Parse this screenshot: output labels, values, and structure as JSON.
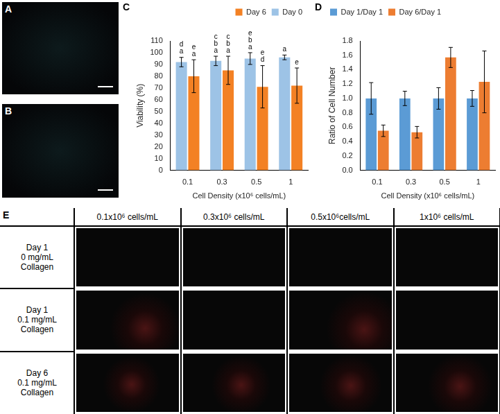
{
  "chart_data": [
    {
      "type": "bar",
      "title": "C",
      "categories": [
        "0.1",
        "0.3",
        "0.5",
        "1"
      ],
      "x_label": "Cell Density (x10⁶ cells/mL)",
      "y_label": "Viability (%)",
      "ylim": [
        0,
        110
      ],
      "yticks": [
        0,
        10,
        20,
        30,
        40,
        50,
        60,
        70,
        80,
        90,
        100,
        110
      ],
      "grid": false,
      "legend": "top-right",
      "series": [
        {
          "name": "Day 0",
          "color": "#9dc3e6",
          "values": [
            92,
            93,
            95,
            96
          ],
          "errors": [
            4,
            4,
            5,
            2
          ],
          "letters": [
            [
              "d",
              "a"
            ],
            [
              "c",
              "b",
              "a"
            ],
            [
              "e",
              "b",
              "a"
            ],
            [
              "a"
            ]
          ]
        },
        {
          "name": "Day 6",
          "color": "#f38124",
          "values": [
            80,
            85,
            71,
            72
          ],
          "errors": [
            14,
            12,
            18,
            15
          ],
          "letters": [
            [
              "e",
              "a"
            ],
            [
              "c",
              "b",
              "a"
            ],
            [
              "e",
              "d"
            ],
            [
              "e"
            ]
          ]
        }
      ]
    },
    {
      "type": "bar",
      "title": "D",
      "categories": [
        "0.1",
        "0.3",
        "0.5",
        "1"
      ],
      "x_label": "Cell Density (x10⁶ cells/mL)",
      "y_label": "Ratio of Cell Number",
      "ylim": [
        0,
        1.8
      ],
      "yticks": [
        {
          "value": 0,
          "label": "0.0"
        },
        0.2,
        0.4,
        0.6,
        0.8,
        {
          "value": 1,
          "label": "1.0"
        },
        1.2,
        1.4,
        1.6,
        1.8
      ],
      "grid": false,
      "legend": "top-left",
      "series": [
        {
          "name": "Day 1/Day 1",
          "color": "#5b9bd5",
          "values": [
            1,
            1,
            1,
            1
          ],
          "errors": [
            0.22,
            0.1,
            0.15,
            0.11
          ]
        },
        {
          "name": "Day 6/Day 1",
          "color": "#ed7d31",
          "values": [
            0.55,
            0.53,
            1.57,
            1.23
          ],
          "errors": [
            0.08,
            0.08,
            0.14,
            0.43
          ]
        }
      ]
    }
  ],
  "image_panels": [
    {
      "label": "A"
    },
    {
      "label": "B"
    }
  ],
  "image_grid": {
    "label": "E",
    "columns": [
      "0.1x10⁶ cells/mL",
      "0.3x10⁶ cells/mL",
      "0.5x10⁶cells/mL",
      "1x10⁶ cells/mL"
    ],
    "rows": [
      [
        "Day 1",
        "0 mg/mL",
        "Collagen"
      ],
      [
        "Day 1",
        "0.1 mg/mL",
        "Collagen"
      ],
      [
        "Day 6",
        "0.1 mg/mL",
        "Collagen"
      ]
    ]
  }
}
